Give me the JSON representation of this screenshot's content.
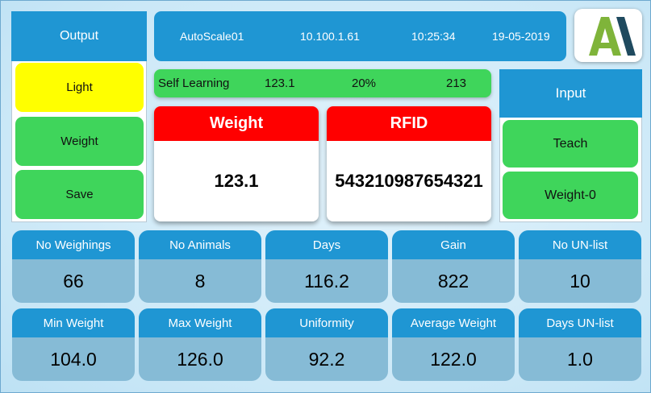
{
  "output": {
    "title": "Output",
    "buttons": [
      {
        "label": "Light",
        "state": "active"
      },
      {
        "label": "Weight",
        "state": "normal"
      },
      {
        "label": "Save",
        "state": "normal"
      }
    ]
  },
  "info_bar": {
    "device": "AutoScale01",
    "ip": "10.100.1.61",
    "time": "10:25:34",
    "date": "19-05-2019"
  },
  "logo": {
    "icon": "brand-logo-icon",
    "colors": [
      "#7fb43a",
      "#1f4a5f"
    ]
  },
  "self_learning": {
    "label": "Self Learning",
    "value": "123.1",
    "percent": "20%",
    "count": "213"
  },
  "weight_card": {
    "title": "Weight",
    "value": "123.1"
  },
  "rfid_card": {
    "title": "RFID",
    "value": "543210987654321"
  },
  "input": {
    "title": "Input",
    "buttons": [
      {
        "label": "Teach"
      },
      {
        "label": "Weight-0"
      }
    ]
  },
  "stats": [
    {
      "label": "No Weighings",
      "value": "66"
    },
    {
      "label": "No Animals",
      "value": "8"
    },
    {
      "label": "Days",
      "value": "116.2"
    },
    {
      "label": "Gain",
      "value": "822"
    },
    {
      "label": "No UN-list",
      "value": "10"
    },
    {
      "label": "Min Weight",
      "value": "104.0"
    },
    {
      "label": "Max Weight",
      "value": "126.0"
    },
    {
      "label": "Uniformity",
      "value": "92.2"
    },
    {
      "label": "Average Weight",
      "value": "122.0"
    },
    {
      "label": "Days UN-list",
      "value": "1.0"
    }
  ],
  "colors": {
    "header_blue": "#1f96d3",
    "button_green": "#3fd55b",
    "active_yellow": "#ffff00",
    "card_red": "#ff0000",
    "tile_body": "#86bbd6"
  }
}
